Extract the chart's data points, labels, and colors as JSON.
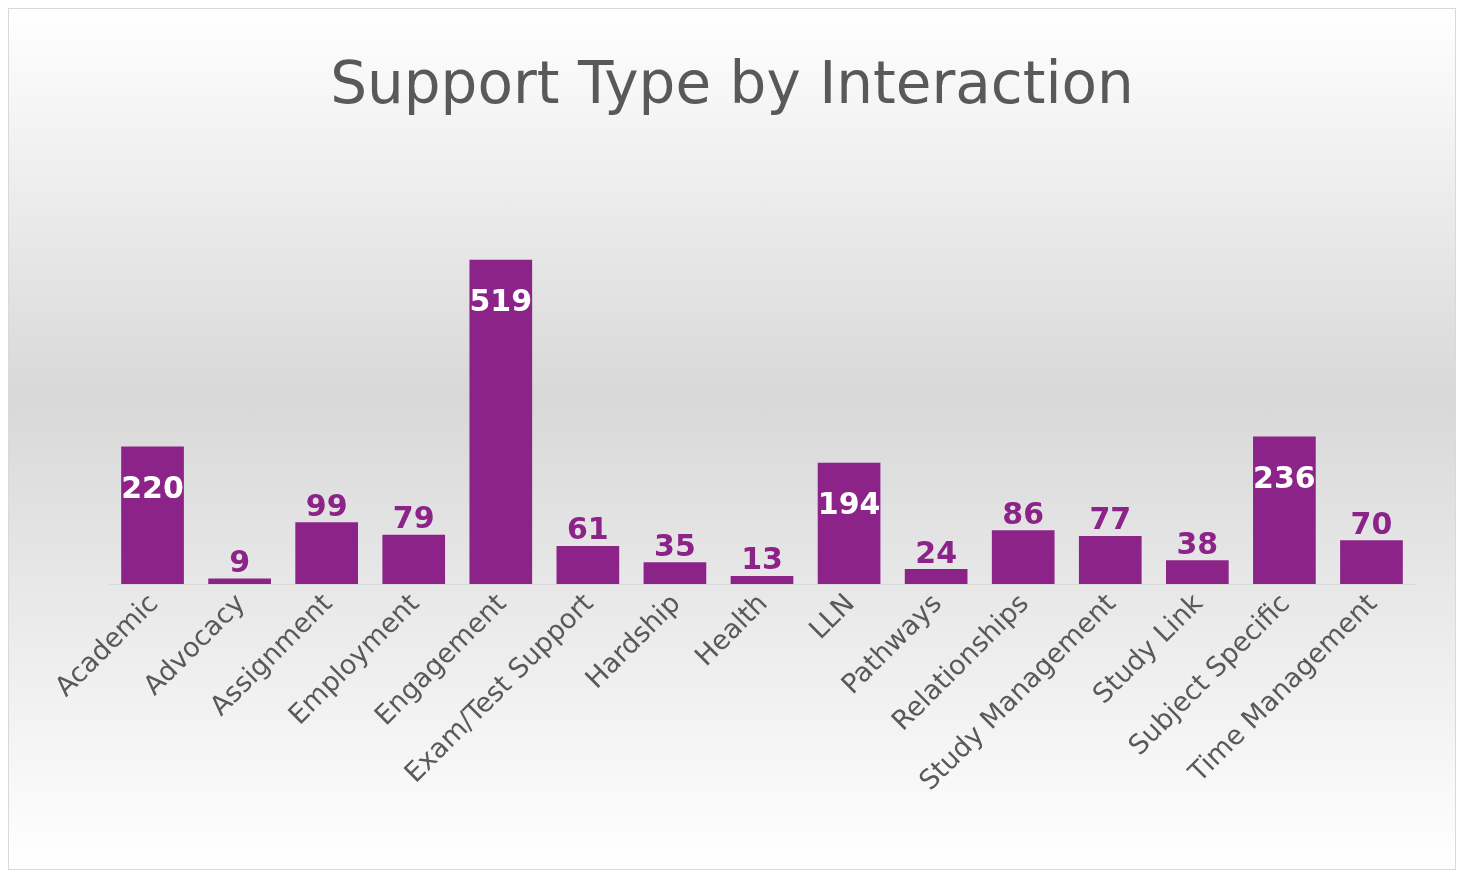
{
  "chart_data": {
    "type": "bar",
    "title": "Support Type by Interaction",
    "categories": [
      "Academic",
      "Advocacy",
      "Assignment",
      "Employment",
      "Engagement",
      "Exam/Test Support",
      "Hardship",
      "Health",
      "LLN",
      "Pathways",
      "Relationships",
      "Study Management",
      "Study Link",
      "Subject Specific",
      "Time Management"
    ],
    "values": [
      220,
      9,
      99,
      79,
      519,
      61,
      35,
      13,
      194,
      24,
      86,
      77,
      38,
      236,
      70
    ],
    "color": "#8b2388",
    "data_labels": true,
    "grid": false
  }
}
